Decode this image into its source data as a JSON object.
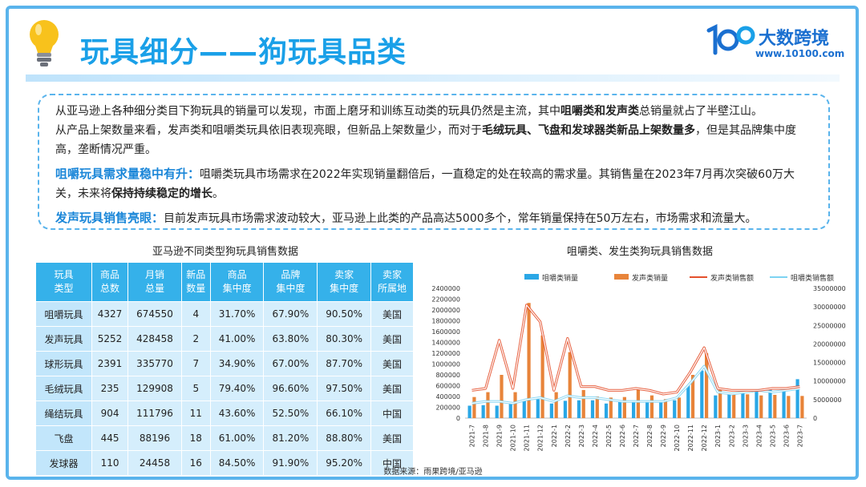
{
  "header": {
    "title": "玩具细分——狗玩具品类",
    "logo_name": "大数跨境",
    "logo_url": "www.10100.com"
  },
  "intro": {
    "p1_a": "从亚马逊上各种细分类目下狗玩具的销量可以发现，市面上磨牙和训练互动类的玩具仍然是主流，其中",
    "p1_b": "咀嚼类和发声类",
    "p1_c": "总销量就占了半壁江山。",
    "p2_a": "从产品上架数量来看，发声类和咀嚼类玩具依旧表现亮眼，但新品上架数量少，而对于",
    "p2_b": "毛绒玩具、飞盘和发球器类新品上架数量多",
    "p2_c": "，但是其品牌集中度高，垄断情况严重。",
    "p3_head": "咀嚼玩具需求量稳中有升：",
    "p3_a": "咀嚼类玩具市场需求在2022年实现销量翻倍后，一直稳定的处在较高的需求量。其销售量在2023年7月再次突破60万大关，未来将",
    "p3_b": "保持持续稳定的增长",
    "p3_c": "。",
    "p4_head": "发声玩具销售亮眼：",
    "p4_a": "目前发声玩具市场需求波动较大，亚马逊上此类的产品高达5000多个，常年销量保持在50万左右，市场需求和流量大。"
  },
  "table": {
    "title": "亚马逊不同类型狗玩具销售数据",
    "headers": [
      [
        "玩具",
        "类型"
      ],
      [
        "商品",
        "总数"
      ],
      [
        "月销",
        "总量"
      ],
      [
        "新品",
        "数量"
      ],
      [
        "商品",
        "集中度"
      ],
      [
        "品牌",
        "集中度"
      ],
      [
        "卖家",
        "集中度"
      ],
      [
        "卖家",
        "所属地"
      ]
    ],
    "rows": [
      [
        "咀嚼玩具",
        "4327",
        "674550",
        "4",
        "31.70%",
        "67.90%",
        "90.50%",
        "美国"
      ],
      [
        "发声玩具",
        "5252",
        "428458",
        "2",
        "41.00%",
        "63.80%",
        "80.30%",
        "美国"
      ],
      [
        "球形玩具",
        "2391",
        "335770",
        "7",
        "34.90%",
        "67.00%",
        "87.70%",
        "美国"
      ],
      [
        "毛绒玩具",
        "235",
        "129908",
        "5",
        "79.40%",
        "96.60%",
        "97.50%",
        "美国"
      ],
      [
        "绳结玩具",
        "904",
        "111796",
        "11",
        "43.60%",
        "52.50%",
        "66.10%",
        "中国"
      ],
      [
        "飞盘",
        "445",
        "88196",
        "18",
        "61.00%",
        "81.20%",
        "88.80%",
        "美国"
      ],
      [
        "发球器",
        "110",
        "24458",
        "16",
        "84.50%",
        "91.90%",
        "95.20%",
        "中国"
      ]
    ]
  },
  "chart_data": {
    "type": "bar",
    "title": "咀嚼类、发生类狗玩具销售数据",
    "categories": [
      "2021-7",
      "2021-8",
      "2021-9",
      "2021-10",
      "2021-11",
      "2021-12",
      "2022-1",
      "2022-2",
      "2022-3",
      "2022-4",
      "2022-5",
      "2022-6",
      "2022-7",
      "2022-8",
      "2022-9",
      "2022-10",
      "2022-11",
      "2022-12",
      "2023-1",
      "2023-2",
      "2023-3",
      "2023-4",
      "2023-5",
      "2023-6",
      "2023-7"
    ],
    "y_left": {
      "ylim": [
        0,
        2400000
      ],
      "ticks": [
        0,
        200000,
        400000,
        600000,
        800000,
        1000000,
        1200000,
        1400000,
        1600000,
        1800000,
        2000000,
        2200000,
        2400000
      ]
    },
    "y_right": {
      "ylim": [
        0,
        35000000
      ],
      "ticks": [
        0,
        5000000,
        10000000,
        15000000,
        20000000,
        25000000,
        30000000,
        35000000
      ]
    },
    "colors": {
      "chew_qty": "#2aa7e6",
      "sound_qty": "#e8843a",
      "sound_amt": "#e4502c",
      "chew_amt": "#7dd3f2"
    },
    "series": [
      {
        "name": "咀嚼类销量",
        "kind": "bar",
        "axis": "left",
        "values": [
          230000,
          240000,
          230000,
          260000,
          320000,
          350000,
          270000,
          320000,
          330000,
          330000,
          270000,
          300000,
          300000,
          320000,
          290000,
          330000,
          600000,
          880000,
          420000,
          450000,
          460000,
          510000,
          530000,
          520000,
          720000
        ]
      },
      {
        "name": "发声类销量",
        "kind": "bar",
        "axis": "left",
        "values": [
          390000,
          480000,
          800000,
          480000,
          2130000,
          1530000,
          480000,
          1220000,
          520000,
          400000,
          380000,
          390000,
          530000,
          420000,
          350000,
          380000,
          800000,
          1200000,
          520000,
          430000,
          440000,
          420000,
          430000,
          410000,
          410000
        ]
      },
      {
        "name": "发声类销售额",
        "kind": "line",
        "axis": "right",
        "values": [
          7500000,
          8000000,
          21000000,
          8000000,
          30500000,
          26000000,
          7500000,
          21500000,
          8500000,
          8500000,
          7500000,
          7500000,
          8000000,
          7500000,
          6500000,
          7000000,
          12500000,
          19000000,
          8000000,
          7500000,
          7500000,
          7500000,
          8000000,
          8000000,
          8500000
        ]
      },
      {
        "name": "咀嚼类销售额",
        "kind": "line",
        "axis": "right",
        "values": [
          4000000,
          4500000,
          4500000,
          4000000,
          5000000,
          5500000,
          4500000,
          6000000,
          5500000,
          5500000,
          5000000,
          4500000,
          4500000,
          4500000,
          4500000,
          5500000,
          9500000,
          14000000,
          7000000,
          6500000,
          7000000,
          7500000,
          7000000,
          7500000,
          8000000
        ]
      }
    ]
  },
  "source": "数据来源：雨果跨境/亚马逊"
}
